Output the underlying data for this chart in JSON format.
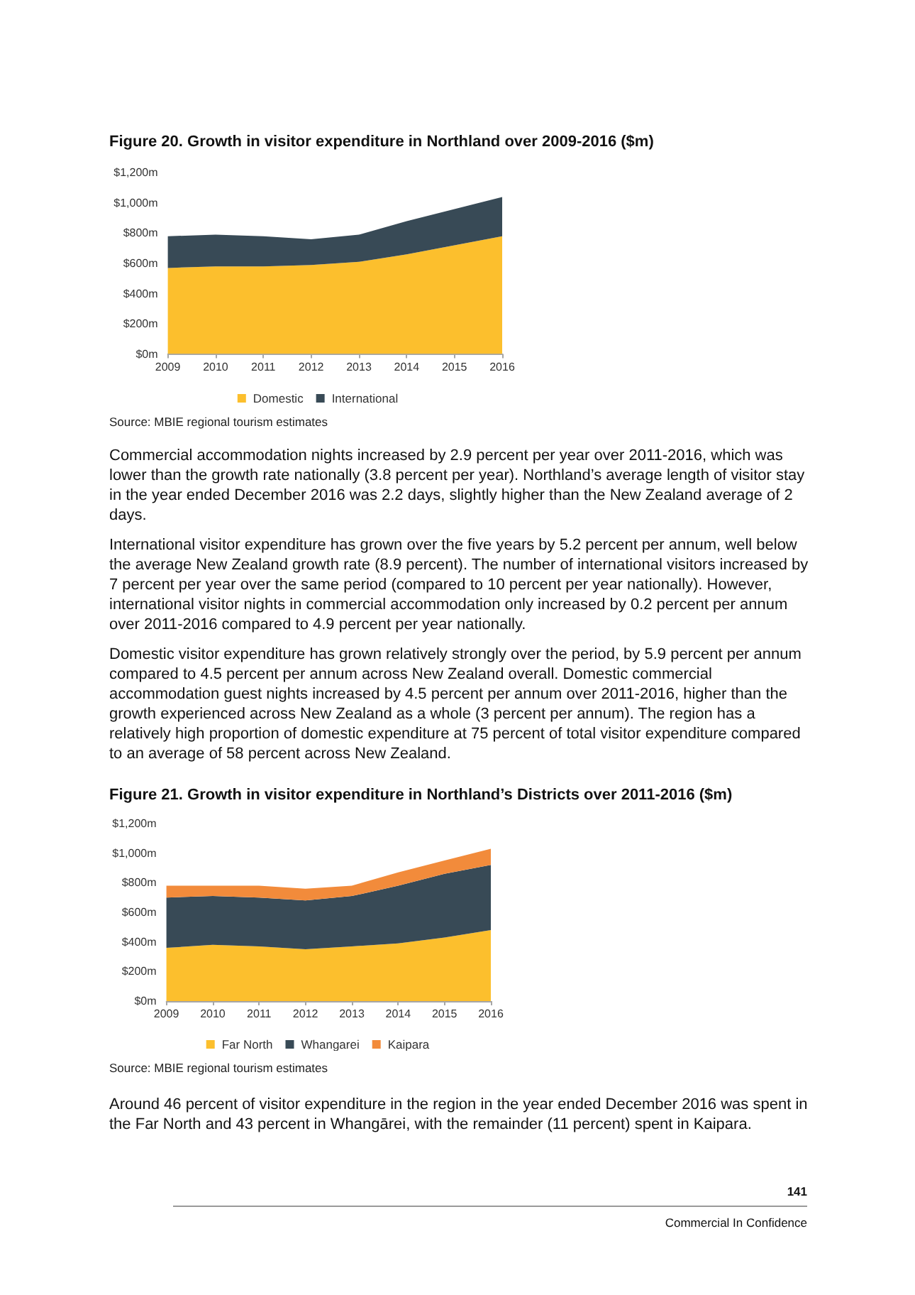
{
  "chart_data": [
    {
      "type": "area",
      "title": "Figure 20. Growth in visitor expenditure in Northland over 2009-2016 ($m)",
      "categories": [
        "2009",
        "2010",
        "2011",
        "2012",
        "2013",
        "2014",
        "2015",
        "2016"
      ],
      "stacked": true,
      "series": [
        {
          "name": "Domestic",
          "color": "#fcbf2d",
          "values": [
            570,
            580,
            580,
            590,
            610,
            660,
            720,
            780
          ]
        },
        {
          "name": "International",
          "color": "#384a56",
          "values": [
            210,
            210,
            200,
            170,
            180,
            220,
            240,
            260
          ]
        }
      ],
      "ylim": [
        0,
        1200
      ],
      "yticks": [
        {
          "value": 0,
          "label": "$0m"
        },
        {
          "value": 200,
          "label": "$200m"
        },
        {
          "value": 400,
          "label": "$400m"
        },
        {
          "value": 600,
          "label": "$600m"
        },
        {
          "value": 800,
          "label": "$800m"
        },
        {
          "value": 1000,
          "label": "$1,000m"
        },
        {
          "value": 1200,
          "label": "$1,200m"
        }
      ],
      "legend": "bottom",
      "annotations": [
        "Source: MBIE regional tourism estimates"
      ]
    },
    {
      "type": "other",
      "annotations": [
        "Commercial accommodation nights increased by 2.9 percent per year over 2011-2016, which was lower than the growth rate nationally (3.8 percent per year). Northland’s average length of visitor stay in the year ended December 2016 was 2.2 days, slightly higher than the New Zealand average of 2 days.",
        "International visitor expenditure has grown over the five years by 5.2 percent per annum, well below the average New Zealand growth rate (8.9 percent). The number of international visitors increased by 7 percent per year over the same period (compared to 10 percent per year nationally). However, international visitor nights in commercial accommodation only increased by 0.2 percent per annum over 2011-2016 compared to 4.9 percent per year nationally.",
        "Domestic visitor expenditure has grown relatively strongly over the period, by 5.9 percent per annum compared to 4.5 percent per annum across New Zealand overall. Domestic commercial accommodation guest nights increased by 4.5 percent per annum over 2011-2016, higher than the growth experienced across New Zealand as a whole (3 percent per annum). The region has a relatively high proportion of domestic expenditure at 75 percent of total visitor expenditure compared to an average of 58 percent across New Zealand."
      ]
    },
    {
      "type": "area",
      "title": "Figure 21. Growth in visitor expenditure in Northland’s Districts over 2011-2016 ($m)",
      "categories": [
        "2009",
        "2010",
        "2011",
        "2012",
        "2013",
        "2014",
        "2015",
        "2016"
      ],
      "stacked": true,
      "series": [
        {
          "name": "Far North",
          "color": "#fcbf2d",
          "values": [
            360,
            380,
            370,
            350,
            370,
            390,
            430,
            480
          ]
        },
        {
          "name": "Whangarei",
          "color": "#384a56",
          "values": [
            340,
            330,
            330,
            330,
            340,
            390,
            430,
            440
          ]
        },
        {
          "name": "Kaipara",
          "color": "#f28b3b",
          "values": [
            80,
            70,
            80,
            80,
            70,
            90,
            90,
            110
          ]
        }
      ],
      "ylim": [
        0,
        1200
      ],
      "yticks": [
        {
          "value": 0,
          "label": "$0m"
        },
        {
          "value": 200,
          "label": "$200m"
        },
        {
          "value": 400,
          "label": "$400m"
        },
        {
          "value": 600,
          "label": "$600m"
        },
        {
          "value": 800,
          "label": "$800m"
        },
        {
          "value": 1000,
          "label": "$1,000m"
        },
        {
          "value": 1200,
          "label": "$1,200m"
        }
      ],
      "legend": "bottom",
      "annotations": [
        "Source: MBIE regional tourism estimates"
      ]
    },
    {
      "type": "other",
      "annotations": [
        "Around 46 percent of visitor expenditure in the region in the year ended December 2016 was spent in the Far North and 43 percent in Whangārei, with the remainder (11 percent) spent in Kaipara."
      ]
    },
    {
      "type": "other",
      "annotations": [
        "141",
        "Commercial In Confidence"
      ]
    }
  ]
}
